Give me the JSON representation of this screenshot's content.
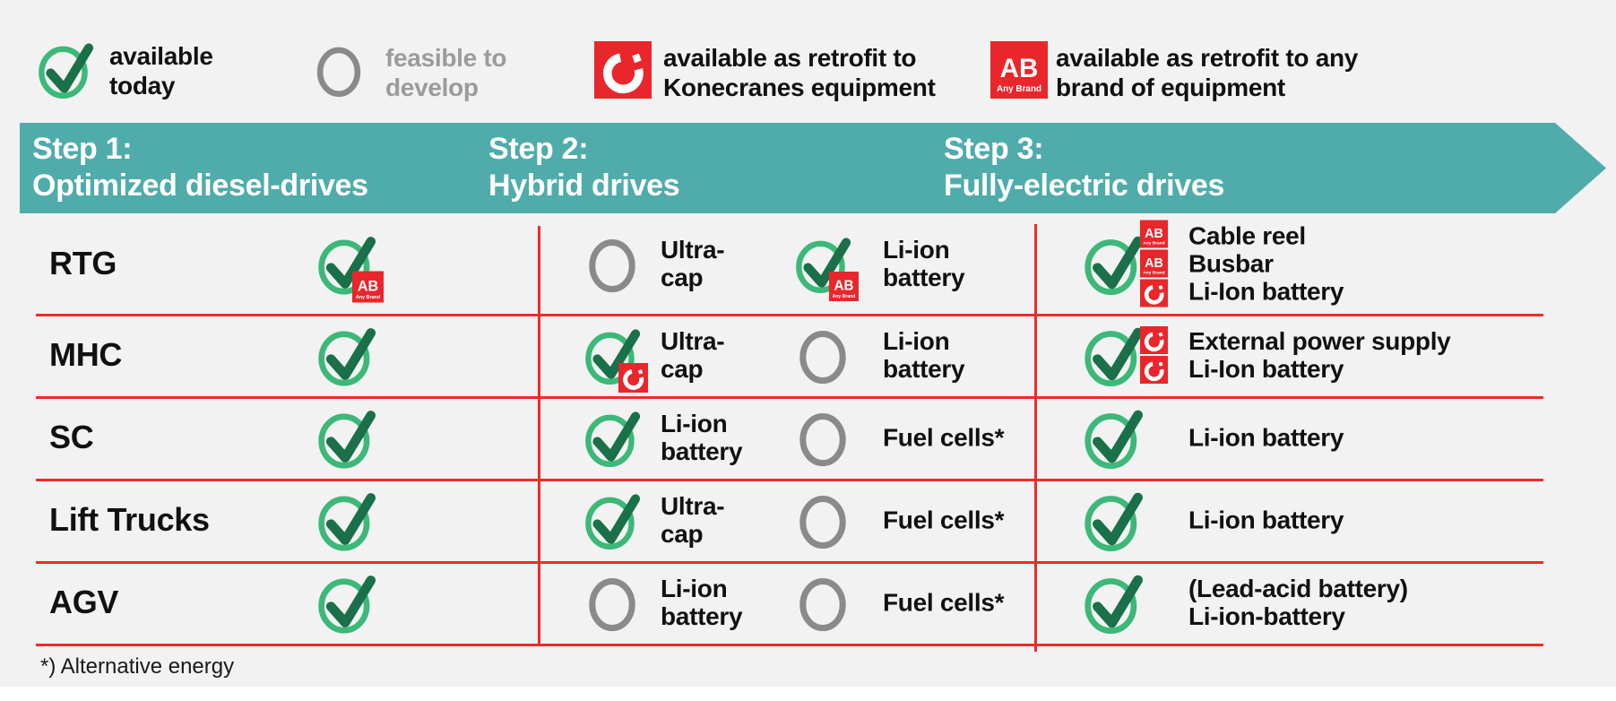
{
  "colors": {
    "background": "#F2F2F2",
    "teal_banner": "#4FACAA",
    "red_badge": "#E8262B",
    "red_line": "#EE2C2A",
    "green_ring": "#3CB878",
    "green_check": "#1A7048",
    "gray_circle": "#8A8A8A",
    "gray_text": "#9B9B9B",
    "text": "#111111",
    "white": "#FFFFFF"
  },
  "legend": {
    "items": [
      {
        "icon": "check-icon",
        "lines": [
          "available",
          "today"
        ]
      },
      {
        "icon": "circle-icon",
        "lines": [
          "feasible to",
          "develop"
        ]
      },
      {
        "icon": "konecranes-c-badge",
        "lines": [
          "available as retrofit to",
          "Konecranes equipment"
        ]
      },
      {
        "icon": "any-brand-badge",
        "lines": [
          "available as retrofit to any",
          "brand of equipment"
        ]
      }
    ]
  },
  "banner": {
    "steps": [
      {
        "step": "Step 1:",
        "title": "Optimized diesel-drives"
      },
      {
        "step": "Step 2:",
        "title": "Hybrid drives"
      },
      {
        "step": "Step 3:",
        "title": "Fully-electric drives"
      }
    ]
  },
  "badges": {
    "ab_top": "AB",
    "ab_bottom": "Any Brand"
  },
  "table": {
    "rows": [
      {
        "label": "RTG",
        "step1": {
          "icon": "check",
          "badge": "ab"
        },
        "step2a": {
          "icon": "circle",
          "lines": [
            "Ultra-",
            "cap"
          ]
        },
        "step2b": {
          "icon": "check",
          "badge": "ab",
          "lines": [
            "Li-ion",
            "battery"
          ]
        },
        "step3": {
          "icon": "check",
          "stack": [
            "ab",
            "ab",
            "c"
          ],
          "lines": [
            "Cable reel",
            "Busbar",
            "Li-Ion battery"
          ]
        }
      },
      {
        "label": "MHC",
        "step1": {
          "icon": "check"
        },
        "step2a": {
          "icon": "check",
          "badge": "c",
          "lines": [
            "Ultra-",
            "cap"
          ]
        },
        "step2b": {
          "icon": "circle",
          "lines": [
            "Li-ion",
            "battery"
          ]
        },
        "step3": {
          "icon": "check",
          "stack": [
            "c",
            "c"
          ],
          "lines": [
            "External power supply",
            "Li-Ion battery"
          ]
        }
      },
      {
        "label": "SC",
        "step1": {
          "icon": "check"
        },
        "step2a": {
          "icon": "check",
          "lines": [
            "Li-ion",
            "battery"
          ]
        },
        "step2b": {
          "icon": "circle",
          "lines": [
            "Fuel cells*"
          ]
        },
        "step3": {
          "icon": "check",
          "stack": [],
          "lines": [
            "Li-ion battery"
          ]
        }
      },
      {
        "label": "Lift Trucks",
        "step1": {
          "icon": "check"
        },
        "step2a": {
          "icon": "check",
          "lines": [
            "Ultra-",
            "cap"
          ]
        },
        "step2b": {
          "icon": "circle",
          "lines": [
            "Fuel cells*"
          ]
        },
        "step3": {
          "icon": "check",
          "stack": [],
          "lines": [
            "Li-ion battery"
          ]
        }
      },
      {
        "label": "AGV",
        "step1": {
          "icon": "check"
        },
        "step2a": {
          "icon": "circle",
          "lines": [
            "Li-ion",
            "battery"
          ]
        },
        "step2b": {
          "icon": "circle",
          "lines": [
            "Fuel cells*"
          ]
        },
        "step3": {
          "icon": "check",
          "stack": [],
          "lines": [
            "(Lead-acid battery)",
            "Li-ion-battery"
          ]
        }
      }
    ]
  },
  "footnote": "*) Alternative energy"
}
